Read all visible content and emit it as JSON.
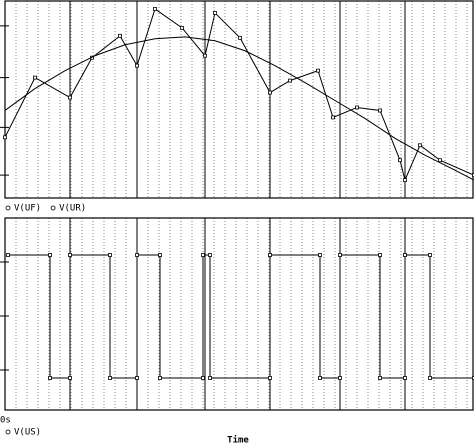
{
  "chart_data": [
    {
      "type": "line",
      "xlim": [
        0,
        469
      ],
      "ylim": [
        0,
        198
      ],
      "ygrid": [
        173,
        121,
        71,
        23
      ],
      "xgrid": [
        65,
        132,
        200,
        265,
        335,
        400
      ],
      "xgrid_minor_step": 11,
      "series": [
        {
          "name": "V(UF)",
          "color": "#000000",
          "marker": "square",
          "x": [
            0,
            30,
            65,
            87,
            115,
            132,
            150,
            177,
            200,
            210,
            235,
            265,
            285,
            313,
            328,
            352,
            375,
            395,
            400,
            415,
            435,
            469
          ],
          "values": [
            61,
            121,
            101,
            141,
            163,
            133,
            190,
            171,
            143,
            186,
            161,
            106,
            118,
            128,
            81,
            91,
            88,
            38,
            18,
            53,
            38,
            23
          ]
        },
        {
          "name": "V(UR)",
          "color": "#000000",
          "marker": "none",
          "x": [
            0,
            30,
            60,
            90,
            120,
            150,
            180,
            210,
            240,
            270,
            300,
            330,
            360,
            390,
            420,
            450,
            469
          ],
          "values": [
            88,
            110,
            128,
            143,
            154,
            160,
            162,
            158,
            148,
            133,
            116,
            98,
            80,
            60,
            43,
            28,
            18
          ]
        }
      ]
    },
    {
      "type": "line",
      "xlim": [
        0,
        469
      ],
      "ylim": [
        0,
        192
      ],
      "ygrid": [
        148,
        94,
        40
      ],
      "xgrid": [
        65,
        132,
        200,
        265,
        335,
        400
      ],
      "xgrid_minor_step": 11,
      "xticks": [
        {
          "value": 0,
          "label": "0s"
        }
      ],
      "xlabel": "Time",
      "series": [
        {
          "name": "V(US)",
          "color": "#000000",
          "marker": "square",
          "x": [
            3,
            45,
            45,
            65,
            65,
            105,
            105,
            132,
            132,
            155,
            155,
            198,
            198,
            205,
            205,
            265,
            265,
            315,
            315,
            335,
            335,
            375,
            375,
            400,
            400,
            425,
            425,
            469
          ],
          "values": [
            155,
            155,
            32,
            32,
            155,
            155,
            32,
            32,
            155,
            155,
            32,
            32,
            155,
            155,
            32,
            32,
            155,
            155,
            32,
            32,
            155,
            155,
            32,
            32,
            155,
            155,
            32,
            32
          ]
        }
      ]
    }
  ]
}
